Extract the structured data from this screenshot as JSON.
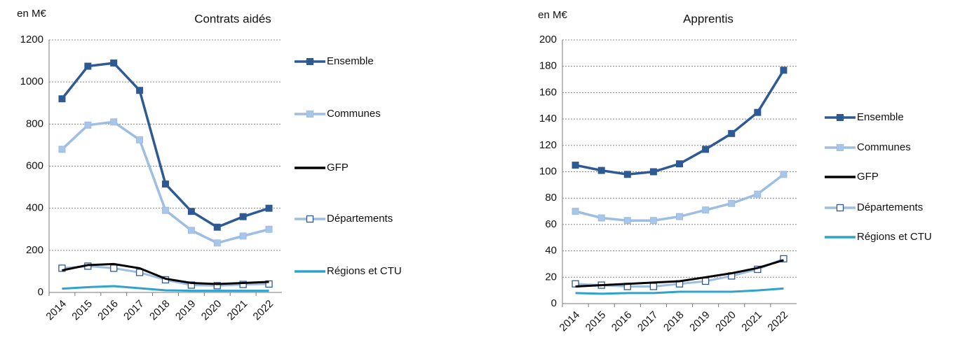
{
  "chart_data": [
    {
      "type": "line",
      "title": "Contrats aidés",
      "y_label": "en M€",
      "categories": [
        "2014",
        "2015",
        "2016",
        "2017",
        "2018",
        "2019",
        "2020",
        "2021",
        "2022"
      ],
      "ylim": [
        0,
        1200
      ],
      "yticks": [
        0,
        200,
        400,
        600,
        800,
        1000,
        1200
      ],
      "grid": true,
      "legend": "right",
      "series": [
        {
          "name": "Ensemble",
          "color": "#2e5a94",
          "marker": "square",
          "values": [
            920,
            1075,
            1090,
            960,
            515,
            385,
            310,
            360,
            400
          ]
        },
        {
          "name": "Communes",
          "color": "#9dbde3",
          "marker": "square",
          "values": [
            680,
            795,
            810,
            725,
            390,
            295,
            235,
            268,
            300
          ]
        },
        {
          "name": "GFP",
          "color": "#000000",
          "marker": "none",
          "values": [
            105,
            130,
            135,
            115,
            65,
            45,
            40,
            45,
            50
          ]
        },
        {
          "name": "Départements",
          "color": "#9dbde3",
          "marker": "open-square",
          "values": [
            115,
            125,
            115,
            95,
            60,
            35,
            32,
            38,
            40
          ]
        },
        {
          "name": "Régions et CTU",
          "color": "#31a3c8",
          "marker": "none",
          "values": [
            18,
            25,
            30,
            20,
            10,
            8,
            8,
            8,
            8
          ]
        }
      ]
    },
    {
      "type": "line",
      "title": "Apprentis",
      "y_label": "en M€",
      "categories": [
        "2014",
        "2015",
        "2016",
        "2017",
        "2018",
        "2019",
        "2020",
        "2021",
        "2022"
      ],
      "ylim": [
        0,
        200
      ],
      "yticks": [
        0,
        20,
        40,
        60,
        80,
        100,
        120,
        140,
        160,
        180,
        200
      ],
      "grid": true,
      "legend": "right",
      "series": [
        {
          "name": "Ensemble",
          "color": "#2e5a94",
          "marker": "square",
          "values": [
            105,
            101,
            98,
            100,
            106,
            117,
            129,
            145,
            177
          ]
        },
        {
          "name": "Communes",
          "color": "#9dbde3",
          "marker": "square",
          "values": [
            70,
            65,
            63,
            63,
            66,
            71,
            76,
            83,
            98
          ]
        },
        {
          "name": "GFP",
          "color": "#000000",
          "marker": "none",
          "values": [
            13,
            14,
            15,
            16,
            17,
            20,
            23,
            27,
            33
          ]
        },
        {
          "name": "Départements",
          "color": "#9dbde3",
          "marker": "open-square",
          "values": [
            15,
            14,
            13,
            13,
            15,
            17,
            21,
            26,
            34
          ]
        },
        {
          "name": "Régions et CTU",
          "color": "#31a3c8",
          "marker": "none",
          "values": [
            8,
            7.5,
            8,
            8,
            9,
            9,
            9,
            10,
            11.5
          ]
        }
      ]
    }
  ]
}
